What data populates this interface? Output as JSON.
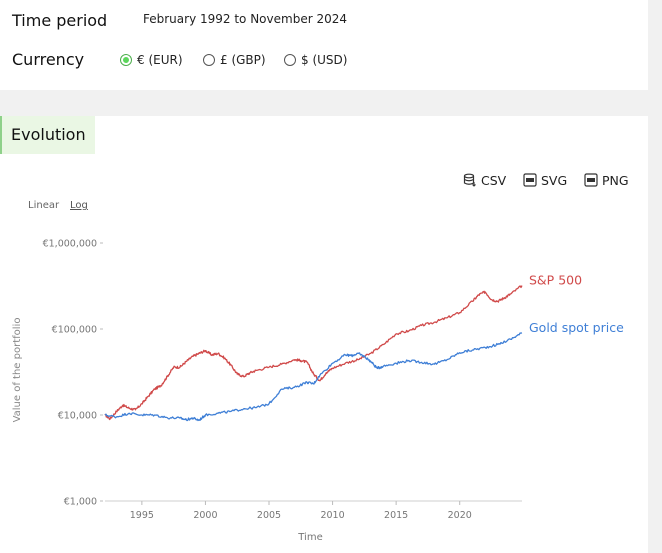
{
  "controls": {
    "time_period_label": "Time period",
    "time_period_value": "February 1992 to November 2024",
    "currency_label": "Currency",
    "currency_options": [
      {
        "label": "€ (EUR)",
        "checked": true
      },
      {
        "label": "£ (GBP)",
        "checked": false
      },
      {
        "label": "$ (USD)",
        "checked": false
      }
    ]
  },
  "section": {
    "title": "Evolution",
    "exports": {
      "csv": "CSV",
      "svg": "SVG",
      "png": "PNG"
    },
    "scale": {
      "linear": "Linear",
      "log": "Log",
      "active": "log"
    }
  },
  "colors": {
    "sp500": "#d04a4a",
    "gold": "#3f7fd6",
    "accent": "#5cd65c"
  },
  "chart_data": {
    "type": "line",
    "xlabel": "Time",
    "ylabel": "Value of the portfolio",
    "xlim": [
      1992.1,
      2024.9
    ],
    "ylim": [
      1000,
      1000000
    ],
    "yscale": "log",
    "x_ticks": [
      1995,
      2000,
      2005,
      2010,
      2015,
      2020
    ],
    "y_ticks": [
      {
        "value": 1000,
        "label": "€1,000"
      },
      {
        "value": 10000,
        "label": "€10,000"
      },
      {
        "value": 100000,
        "label": "€100,000"
      },
      {
        "value": 1000000,
        "label": "€1,000,000"
      }
    ],
    "legend_placement": "line-end labels",
    "series": [
      {
        "name": "S&P 500",
        "color": "#d04a4a",
        "x": [
          1992.1,
          1992.5,
          1993,
          1993.5,
          1994,
          1994.5,
          1995,
          1995.5,
          1996,
          1996.5,
          1997,
          1997.5,
          1998,
          1998.5,
          1999,
          1999.5,
          2000,
          2000.5,
          2001,
          2001.5,
          2002,
          2002.5,
          2003,
          2003.5,
          2004,
          2005,
          2006,
          2007,
          2007.5,
          2008,
          2008.5,
          2009,
          2009.5,
          2010,
          2011,
          2012,
          2013,
          2014,
          2015,
          2016,
          2017,
          2018,
          2019,
          2020,
          2021,
          2021.5,
          2022,
          2022.5,
          2023,
          2023.5,
          2024,
          2024.9
        ],
        "values": [
          10000,
          9000,
          11000,
          13000,
          12000,
          11500,
          13500,
          16500,
          20000,
          22000,
          28000,
          36000,
          36000,
          42000,
          48000,
          52000,
          56000,
          50000,
          52000,
          46000,
          38000,
          30000,
          28000,
          31000,
          33000,
          36000,
          39000,
          44000,
          43000,
          41000,
          30000,
          25000,
          31000,
          35000,
          40000,
          44000,
          52000,
          66000,
          88000,
          95000,
          110000,
          120000,
          135000,
          155000,
          210000,
          250000,
          270000,
          220000,
          210000,
          230000,
          255000,
          320000
        ]
      },
      {
        "name": "Gold spot price",
        "color": "#3f7fd6",
        "x": [
          1992.1,
          1993,
          1994,
          1995,
          1996,
          1997,
          1998,
          1998.5,
          1999,
          1999.5,
          2000,
          2001,
          2002,
          2003,
          2004,
          2005,
          2006,
          2007,
          2008,
          2008.5,
          2009,
          2010,
          2011,
          2011.5,
          2012,
          2012.5,
          2013,
          2013.5,
          2014,
          2015,
          2016,
          2017,
          2018,
          2019,
          2020,
          2021,
          2022,
          2023,
          2024,
          2024.9
        ],
        "values": [
          10000,
          9500,
          10500,
          10000,
          10000,
          9300,
          9200,
          8800,
          9200,
          8700,
          10000,
          10500,
          11000,
          11800,
          12200,
          13500,
          20000,
          21000,
          24000,
          23000,
          29000,
          40000,
          50000,
          49000,
          52000,
          48000,
          42000,
          35000,
          37000,
          40000,
          43000,
          41000,
          39000,
          44000,
          53000,
          57000,
          61000,
          66000,
          76000,
          90000
        ]
      }
    ]
  }
}
